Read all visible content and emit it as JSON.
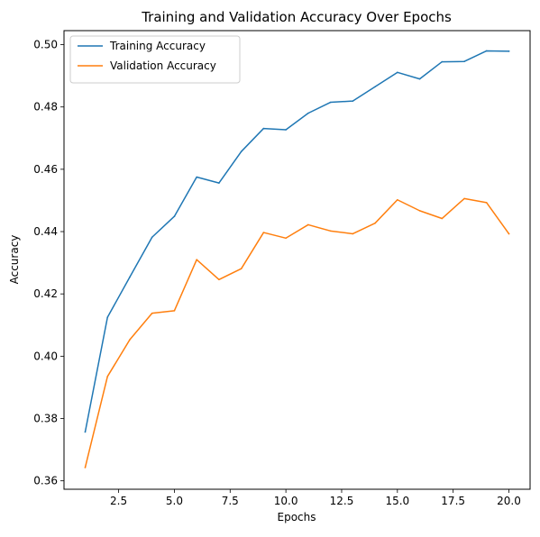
{
  "chart_data": {
    "type": "line",
    "title": "Training and Validation Accuracy Over Epochs",
    "xlabel": "Epochs",
    "ylabel": "Accuracy",
    "xlim": [
      0.05,
      20.95
    ],
    "ylim": [
      0.3573,
      0.5045
    ],
    "x_ticks": [
      2.5,
      5.0,
      7.5,
      10.0,
      12.5,
      15.0,
      17.5,
      20.0
    ],
    "x_tick_labels": [
      "2.5",
      "5.0",
      "7.5",
      "10.0",
      "12.5",
      "15.0",
      "17.5",
      "20.0"
    ],
    "y_ticks": [
      0.36,
      0.38,
      0.4,
      0.42,
      0.44,
      0.46,
      0.48,
      0.5
    ],
    "y_tick_labels": [
      "0.36",
      "0.38",
      "0.40",
      "0.42",
      "0.44",
      "0.46",
      "0.48",
      "0.50"
    ],
    "grid": false,
    "legend_position": "top-left",
    "x": [
      1,
      2,
      3,
      4,
      5,
      6,
      7,
      8,
      9,
      10,
      11,
      12,
      13,
      14,
      15,
      16,
      17,
      18,
      19,
      20
    ],
    "series": [
      {
        "name": "Training Accuracy",
        "color": "#1f77b4",
        "values": [
          0.3757,
          0.4125,
          0.4254,
          0.4382,
          0.4449,
          0.4575,
          0.4556,
          0.4657,
          0.4731,
          0.4727,
          0.478,
          0.4815,
          0.4819,
          0.4865,
          0.4911,
          0.489,
          0.4945,
          0.4946,
          0.498,
          0.4979
        ]
      },
      {
        "name": "Validation Accuracy",
        "color": "#ff7f0e",
        "values": [
          0.3643,
          0.3935,
          0.4053,
          0.4138,
          0.4146,
          0.431,
          0.4246,
          0.4281,
          0.4397,
          0.4379,
          0.4422,
          0.4402,
          0.4393,
          0.4427,
          0.4502,
          0.4467,
          0.4442,
          0.4506,
          0.4493,
          0.4393
        ]
      }
    ]
  }
}
